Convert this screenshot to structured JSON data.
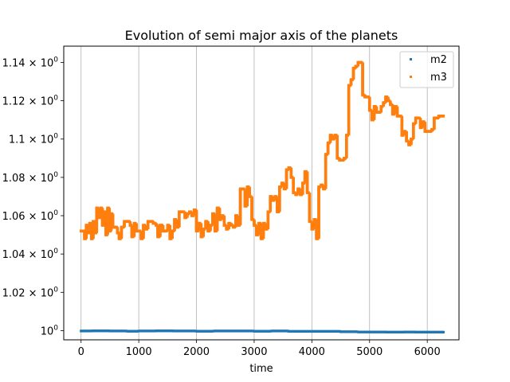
{
  "chart_data": {
    "type": "scatter",
    "title": "Evolution of semi major axis of the planets",
    "xlabel": "time",
    "ylabel": "",
    "xlim": [
      -300,
      6550
    ],
    "ylim": [
      0.9952,
      1.1485
    ],
    "x_ticks": [
      0,
      1000,
      2000,
      3000,
      4000,
      5000,
      6000
    ],
    "x_tick_labels": [
      "0",
      "1000",
      "2000",
      "3000",
      "4000",
      "5000",
      "6000"
    ],
    "y_ticks": [
      1.0,
      1.02,
      1.04,
      1.06,
      1.08,
      1.1,
      1.12,
      1.14
    ],
    "y_tick_labels": [
      {
        "base": "10",
        "exp": "0",
        "prefix": ""
      },
      {
        "base": "10",
        "exp": "0",
        "prefix": "1.02 × "
      },
      {
        "base": "10",
        "exp": "0",
        "prefix": "1.04 × "
      },
      {
        "base": "10",
        "exp": "0",
        "prefix": "1.06 × "
      },
      {
        "base": "10",
        "exp": "0",
        "prefix": "1.08 × "
      },
      {
        "base": "10",
        "exp": "0",
        "prefix": "1.1 × "
      },
      {
        "base": "10",
        "exp": "0",
        "prefix": "1.12 × "
      },
      {
        "base": "10",
        "exp": "0",
        "prefix": "1.14 × "
      }
    ],
    "grid": "x-only",
    "legend_position": "top-right",
    "series": [
      {
        "name": "m2",
        "color": "#1f77b4",
        "points": [
          [
            0,
            0.9998
          ],
          [
            200,
            0.9999
          ],
          [
            500,
            0.9998
          ],
          [
            800,
            0.9997
          ],
          [
            1000,
            0.9998
          ],
          [
            1300,
            0.9999
          ],
          [
            1600,
            0.9998
          ],
          [
            2000,
            0.9997
          ],
          [
            2300,
            0.9998
          ],
          [
            2600,
            0.9998
          ],
          [
            3000,
            0.9997
          ],
          [
            3300,
            0.9998
          ],
          [
            3600,
            0.9996
          ],
          [
            4000,
            0.9996
          ],
          [
            4300,
            0.9996
          ],
          [
            4500,
            0.9994
          ],
          [
            4800,
            0.9993
          ],
          [
            5000,
            0.9993
          ],
          [
            5300,
            0.9992
          ],
          [
            5600,
            0.9993
          ],
          [
            5800,
            0.9992
          ],
          [
            6100,
            0.9992
          ],
          [
            6280,
            0.9992
          ]
        ]
      },
      {
        "name": "m3",
        "color": "#ff7f0e",
        "points": [
          [
            0,
            1.052
          ],
          [
            40,
            1.052
          ],
          [
            60,
            1.048
          ],
          [
            90,
            1.055
          ],
          [
            120,
            1.051
          ],
          [
            150,
            1.056
          ],
          [
            180,
            1.048
          ],
          [
            210,
            1.057
          ],
          [
            240,
            1.051
          ],
          [
            270,
            1.064
          ],
          [
            300,
            1.059
          ],
          [
            340,
            1.064
          ],
          [
            370,
            1.055
          ],
          [
            400,
            1.062
          ],
          [
            430,
            1.05
          ],
          [
            460,
            1.064
          ],
          [
            490,
            1.052
          ],
          [
            520,
            1.061
          ],
          [
            550,
            1.054
          ],
          [
            600,
            1.054
          ],
          [
            630,
            1.051
          ],
          [
            660,
            1.048
          ],
          [
            700,
            1.054
          ],
          [
            750,
            1.057
          ],
          [
            800,
            1.057
          ],
          [
            850,
            1.055
          ],
          [
            880,
            1.049
          ],
          [
            920,
            1.056
          ],
          [
            960,
            1.052
          ],
          [
            1000,
            1.052
          ],
          [
            1040,
            1.048
          ],
          [
            1080,
            1.055
          ],
          [
            1120,
            1.053
          ],
          [
            1160,
            1.057
          ],
          [
            1200,
            1.057
          ],
          [
            1250,
            1.056
          ],
          [
            1300,
            1.055
          ],
          [
            1330,
            1.049
          ],
          [
            1370,
            1.055
          ],
          [
            1420,
            1.052
          ],
          [
            1460,
            1.052
          ],
          [
            1500,
            1.055
          ],
          [
            1540,
            1.048
          ],
          [
            1580,
            1.052
          ],
          [
            1620,
            1.058
          ],
          [
            1660,
            1.054
          ],
          [
            1700,
            1.062
          ],
          [
            1760,
            1.062
          ],
          [
            1800,
            1.059
          ],
          [
            1840,
            1.061
          ],
          [
            1880,
            1.062
          ],
          [
            1920,
            1.06
          ],
          [
            1960,
            1.063
          ],
          [
            2000,
            1.052
          ],
          [
            2040,
            1.056
          ],
          [
            2080,
            1.049
          ],
          [
            2120,
            1.053
          ],
          [
            2160,
            1.057
          ],
          [
            2200,
            1.052
          ],
          [
            2240,
            1.055
          ],
          [
            2280,
            1.061
          ],
          [
            2320,
            1.052
          ],
          [
            2360,
            1.064
          ],
          [
            2400,
            1.058
          ],
          [
            2440,
            1.06
          ],
          [
            2480,
            1.055
          ],
          [
            2520,
            1.053
          ],
          [
            2560,
            1.056
          ],
          [
            2600,
            1.055
          ],
          [
            2640,
            1.054
          ],
          [
            2680,
            1.06
          ],
          [
            2720,
            1.055
          ],
          [
            2760,
            1.074
          ],
          [
            2800,
            1.074
          ],
          [
            2840,
            1.065
          ],
          [
            2880,
            1.075
          ],
          [
            2920,
            1.07
          ],
          [
            2960,
            1.058
          ],
          [
            3000,
            1.055
          ],
          [
            3040,
            1.05
          ],
          [
            3080,
            1.056
          ],
          [
            3120,
            1.048
          ],
          [
            3160,
            1.056
          ],
          [
            3200,
            1.053
          ],
          [
            3240,
            1.062
          ],
          [
            3280,
            1.07
          ],
          [
            3320,
            1.068
          ],
          [
            3360,
            1.07
          ],
          [
            3400,
            1.062
          ],
          [
            3440,
            1.075
          ],
          [
            3480,
            1.077
          ],
          [
            3520,
            1.074
          ],
          [
            3560,
            1.084
          ],
          [
            3600,
            1.085
          ],
          [
            3640,
            1.08
          ],
          [
            3680,
            1.072
          ],
          [
            3720,
            1.071
          ],
          [
            3760,
            1.074
          ],
          [
            3800,
            1.071
          ],
          [
            3840,
            1.077
          ],
          [
            3880,
            1.083
          ],
          [
            3920,
            1.072
          ],
          [
            3960,
            1.057
          ],
          [
            4000,
            1.053
          ],
          [
            4040,
            1.058
          ],
          [
            4080,
            1.048
          ],
          [
            4120,
            1.075
          ],
          [
            4160,
            1.076
          ],
          [
            4200,
            1.074
          ],
          [
            4240,
            1.092
          ],
          [
            4280,
            1.098
          ],
          [
            4320,
            1.102
          ],
          [
            4360,
            1.1
          ],
          [
            4400,
            1.102
          ],
          [
            4440,
            1.09
          ],
          [
            4480,
            1.089
          ],
          [
            4520,
            1.089
          ],
          [
            4560,
            1.09
          ],
          [
            4600,
            1.102
          ],
          [
            4640,
            1.128
          ],
          [
            4680,
            1.131
          ],
          [
            4720,
            1.137
          ],
          [
            4760,
            1.138
          ],
          [
            4800,
            1.14
          ],
          [
            4840,
            1.14
          ],
          [
            4880,
            1.123
          ],
          [
            4920,
            1.122
          ],
          [
            4960,
            1.122
          ],
          [
            5000,
            1.115
          ],
          [
            5040,
            1.11
          ],
          [
            5080,
            1.117
          ],
          [
            5120,
            1.114
          ],
          [
            5160,
            1.114
          ],
          [
            5200,
            1.117
          ],
          [
            5240,
            1.119
          ],
          [
            5280,
            1.122
          ],
          [
            5320,
            1.12
          ],
          [
            5360,
            1.118
          ],
          [
            5400,
            1.113
          ],
          [
            5440,
            1.117
          ],
          [
            5480,
            1.112
          ],
          [
            5520,
            1.112
          ],
          [
            5560,
            1.102
          ],
          [
            5600,
            1.104
          ],
          [
            5640,
            1.099
          ],
          [
            5680,
            1.097
          ],
          [
            5720,
            1.1
          ],
          [
            5760,
            1.108
          ],
          [
            5800,
            1.111
          ],
          [
            5840,
            1.111
          ],
          [
            5880,
            1.106
          ],
          [
            5920,
            1.109
          ],
          [
            5960,
            1.104
          ],
          [
            6000,
            1.104
          ],
          [
            6040,
            1.104
          ],
          [
            6080,
            1.105
          ],
          [
            6120,
            1.111
          ],
          [
            6160,
            1.111
          ],
          [
            6200,
            1.112
          ],
          [
            6240,
            1.112
          ],
          [
            6280,
            1.112
          ]
        ]
      }
    ]
  }
}
